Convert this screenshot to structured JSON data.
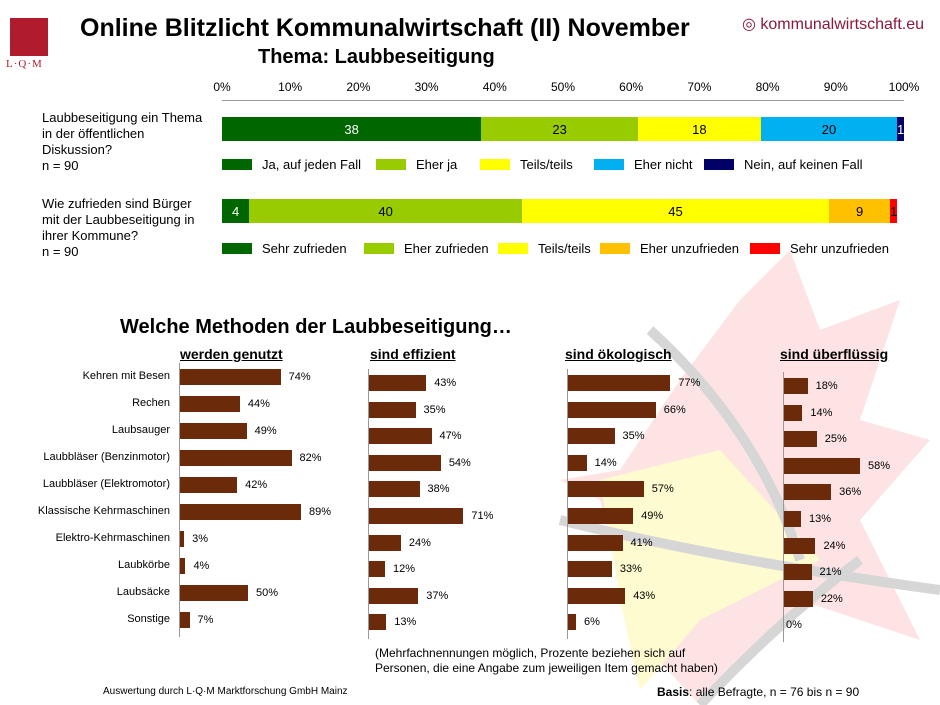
{
  "header": {
    "title": "Online Blitzlicht Kommunalwirtschaft (II) November",
    "subtitle": "Thema: Laubbeseitigung",
    "brand": "kommunalwirtschaft.eu",
    "logo_text": "L·Q·M"
  },
  "colors": {
    "bar": "#6b2a0a",
    "dark_green": "#006600",
    "light_green": "#99cc00",
    "yellow": "#ffff00",
    "light_blue": "#00b0f0",
    "navy": "#000066",
    "orange": "#ffc000",
    "red": "#ff0000"
  },
  "chart_data": [
    {
      "type": "bar",
      "orientation": "horizontal-stacked",
      "axis_ticks": [
        "0%",
        "10%",
        "20%",
        "30%",
        "40%",
        "50%",
        "60%",
        "70%",
        "80%",
        "90%",
        "100%"
      ],
      "xlim": [
        0,
        100
      ],
      "categories": [
        "Laubbeseitigung ein Thema in der öffentlichen Diskussion?",
        "n = 90"
      ],
      "question": "Laubbeseitigung ein Thema in der öffentlichen Diskussion?",
      "n": "n = 90",
      "series": [
        {
          "name": "Ja, auf jeden Fall",
          "value": 38,
          "label": "38",
          "color": "#006600"
        },
        {
          "name": "Eher ja",
          "value": 23,
          "label": "23",
          "color": "#99cc00"
        },
        {
          "name": "Teils/teils",
          "value": 18,
          "label": "18",
          "color": "#ffff00"
        },
        {
          "name": "Eher nicht",
          "value": 20,
          "label": "20",
          "color": "#00b0f0"
        },
        {
          "name": "Nein, auf keinen Fall",
          "value": 1,
          "label": "1",
          "color": "#000066"
        }
      ]
    },
    {
      "type": "bar",
      "orientation": "horizontal-stacked",
      "xlim": [
        0,
        100
      ],
      "question": "Wie zufrieden sind Bürger mit der Laubbeseitigung in ihrer Kommune?",
      "n": "n = 90",
      "series": [
        {
          "name": "Sehr zufrieden",
          "value": 4,
          "label": "4",
          "color": "#006600"
        },
        {
          "name": "Eher zufrieden",
          "value": 40,
          "label": "40",
          "color": "#99cc00"
        },
        {
          "name": "Teils/teils",
          "value": 45,
          "label": "45",
          "color": "#ffff00"
        },
        {
          "name": "Eher unzufrieden",
          "value": 9,
          "label": "9",
          "color": "#ffc000"
        },
        {
          "name": "Sehr unzufrieden",
          "value": 1,
          "label": "1",
          "color": "#ff0000"
        }
      ]
    },
    {
      "type": "bar",
      "orientation": "horizontal",
      "title": "Welche Methoden der Laubbeseitigung…",
      "categories": [
        "Kehren mit Besen",
        "Rechen",
        "Laubsauger",
        "Laubbläser (Benzinmotor)",
        "Laubbläser (Elektromotor)",
        "Klassische Kehrmaschinen",
        "Elektro-Kehrmaschinen",
        "Laubkörbe",
        "Laubsäcke",
        "Sonstige"
      ],
      "series": [
        {
          "name": "werden genutzt",
          "values": [
            74,
            44,
            49,
            82,
            42,
            89,
            3,
            4,
            50,
            7
          ]
        },
        {
          "name": "sind effizient",
          "values": [
            43,
            35,
            47,
            54,
            38,
            71,
            24,
            12,
            37,
            13
          ]
        },
        {
          "name": "sind ökologisch",
          "values": [
            77,
            66,
            35,
            14,
            57,
            49,
            41,
            33,
            43,
            6
          ]
        },
        {
          "name": "sind überflüssig",
          "values": [
            18,
            14,
            25,
            58,
            36,
            13,
            24,
            21,
            22,
            0
          ]
        }
      ]
    }
  ],
  "notes": {
    "line1": "(Mehrfachnennungen möglich, Prozente beziehen sich auf",
    "line2": "Personen, die eine Angabe zum jeweiligen Item gemacht haben)",
    "footer": "Auswertung durch L·Q·M Marktforschung GmbH Mainz",
    "basis_label": "Basis",
    "basis_text": ": alle Befragte, n = 76 bis n = 90"
  }
}
